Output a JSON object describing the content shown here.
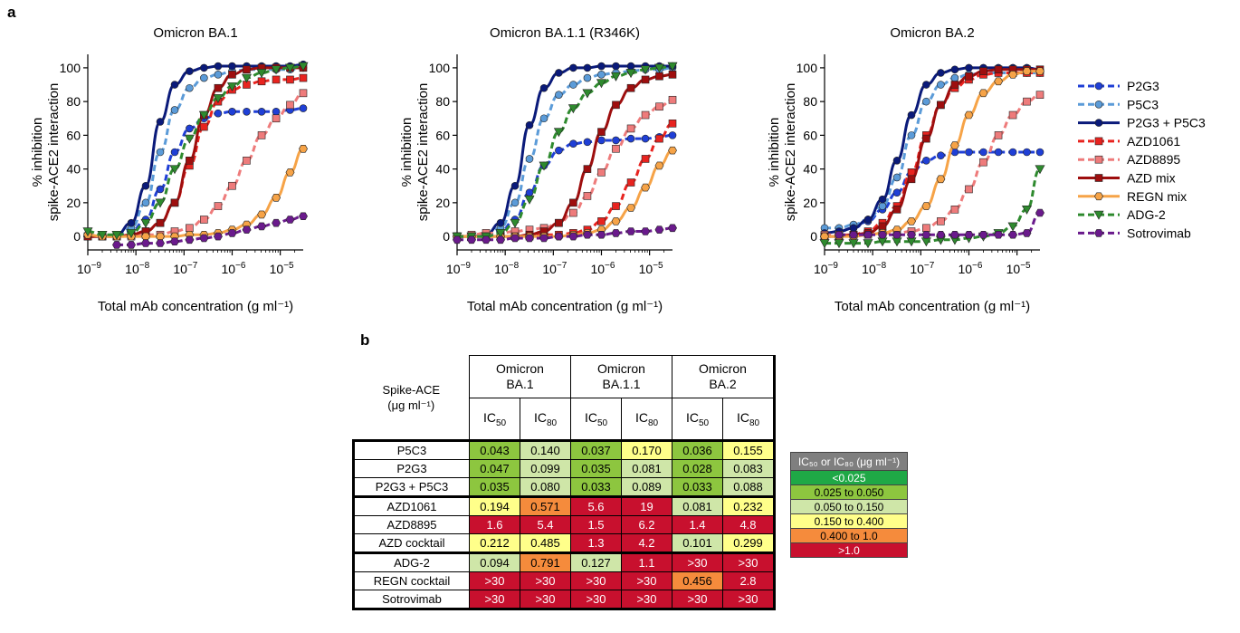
{
  "panel_a_label": "a",
  "panel_b_label": "b",
  "colors": {
    "P2G3": "#1f3fd6",
    "P5C3": "#5b9bd8",
    "P2G3 + P5C3": "#0a1a7a",
    "AZD1061": "#e8231f",
    "AZD8895": "#ee7b7b",
    "AZD mix": "#9e0e0e",
    "REGN mix": "#f6a347",
    "ADG-2": "#2e8a2e",
    "Sotrovimab": "#6a1a8c"
  },
  "chart_data": [
    {
      "type": "line",
      "title": "Omicron BA.1",
      "xlabel": "Total mAb concentration (g ml⁻¹)",
      "ylabel": "% inhibition spike-ACE2 interaction",
      "xscale": "log",
      "xlim": [
        1e-09,
        3e-05
      ],
      "ylim": [
        -8,
        108
      ],
      "xticks": [
        1e-09,
        1e-08,
        1e-07,
        1e-06,
        1e-05
      ],
      "yticks": [
        0,
        20,
        40,
        60,
        80,
        100
      ],
      "x": [
        1e-09,
        2e-09,
        4e-09,
        8e-09,
        1.6e-08,
        3.2e-08,
        6.4e-08,
        1.3e-07,
        2.6e-07,
        5.1e-07,
        1e-06,
        2e-06,
        4.1e-06,
        8.2e-06,
        1.6e-05,
        3e-05
      ],
      "series": [
        {
          "name": "P2G3",
          "values": [
            1,
            0,
            1,
            3,
            10,
            28,
            50,
            64,
            70,
            73,
            74,
            74,
            74,
            74,
            75,
            76
          ]
        },
        {
          "name": "P5C3",
          "values": [
            0,
            0,
            1,
            5,
            20,
            50,
            75,
            88,
            94,
            96,
            98,
            99,
            99,
            99,
            99,
            100
          ]
        },
        {
          "name": "P2G3 + P5C3",
          "values": [
            0,
            0,
            1,
            8,
            30,
            68,
            90,
            98,
            100,
            101,
            101,
            101,
            101,
            101,
            101,
            102
          ]
        },
        {
          "name": "AZD1061",
          "values": [
            0,
            0,
            0,
            1,
            3,
            8,
            20,
            42,
            65,
            80,
            87,
            90,
            92,
            93,
            93,
            94
          ]
        },
        {
          "name": "AZD8895",
          "values": [
            0,
            0,
            0,
            0,
            1,
            1,
            3,
            5,
            10,
            18,
            30,
            45,
            60,
            70,
            78,
            85
          ]
        },
        {
          "name": "AZD mix",
          "values": [
            0,
            0,
            0,
            1,
            3,
            8,
            20,
            45,
            72,
            88,
            96,
            99,
            100,
            100,
            100,
            100
          ]
        },
        {
          "name": "REGN mix",
          "values": [
            1,
            0,
            0,
            0,
            0,
            0,
            0,
            1,
            1,
            2,
            4,
            7,
            13,
            23,
            38,
            52
          ]
        },
        {
          "name": "ADG-2",
          "values": [
            3,
            1,
            1,
            2,
            8,
            20,
            40,
            58,
            72,
            82,
            89,
            94,
            97,
            99,
            100,
            101
          ]
        },
        {
          "name": "Sotrovimab",
          "values": [
            null,
            null,
            -5,
            -5,
            -4,
            -4,
            -3,
            -2,
            -1,
            0,
            2,
            4,
            6,
            8,
            10,
            12
          ]
        }
      ]
    },
    {
      "type": "line",
      "title": "Omicron BA.1.1 (R346K)",
      "xlabel": "Total mAb concentration (g ml⁻¹)",
      "ylabel": "% inhibition spike-ACE2 interaction",
      "xscale": "log",
      "xlim": [
        1e-09,
        3e-05
      ],
      "ylim": [
        -8,
        108
      ],
      "xticks": [
        1e-09,
        1e-08,
        1e-07,
        1e-06,
        1e-05
      ],
      "yticks": [
        0,
        20,
        40,
        60,
        80,
        100
      ],
      "x": [
        1e-09,
        2e-09,
        4e-09,
        8e-09,
        1.6e-08,
        3.2e-08,
        6.4e-08,
        1.3e-07,
        2.6e-07,
        5.1e-07,
        1e-06,
        2e-06,
        4.1e-06,
        8.2e-06,
        1.6e-05,
        3e-05
      ],
      "series": [
        {
          "name": "P2G3",
          "values": [
            0,
            0,
            1,
            3,
            10,
            26,
            42,
            51,
            55,
            56,
            57,
            57,
            58,
            58,
            59,
            60
          ]
        },
        {
          "name": "P5C3",
          "values": [
            0,
            0,
            1,
            5,
            20,
            46,
            70,
            84,
            90,
            94,
            96,
            97,
            98,
            99,
            99,
            100
          ]
        },
        {
          "name": "P2G3 + P5C3",
          "values": [
            0,
            0,
            1,
            8,
            30,
            66,
            88,
            97,
            100,
            100,
            101,
            101,
            101,
            101,
            101,
            101
          ]
        },
        {
          "name": "AZD1061",
          "values": [
            0,
            0,
            0,
            0,
            0,
            0,
            1,
            1,
            2,
            4,
            9,
            18,
            32,
            46,
            58,
            67
          ]
        },
        {
          "name": "AZD8895",
          "values": [
            0,
            1,
            2,
            2,
            3,
            4,
            5,
            8,
            14,
            24,
            38,
            52,
            64,
            72,
            77,
            81
          ]
        },
        {
          "name": "AZD mix",
          "values": [
            0,
            0,
            0,
            0,
            0,
            1,
            3,
            8,
            20,
            40,
            62,
            78,
            88,
            93,
            95,
            96
          ]
        },
        {
          "name": "REGN mix",
          "values": [
            0,
            0,
            0,
            0,
            0,
            0,
            0,
            0,
            1,
            2,
            4,
            9,
            17,
            29,
            42,
            51
          ]
        },
        {
          "name": "ADG-2",
          "values": [
            0,
            0,
            0,
            2,
            8,
            22,
            42,
            62,
            76,
            85,
            91,
            95,
            97,
            99,
            100,
            101
          ]
        },
        {
          "name": "Sotrovimab",
          "values": [
            -2,
            -2,
            -2,
            -2,
            -1,
            -1,
            -1,
            0,
            0,
            1,
            1,
            2,
            3,
            3,
            4,
            5
          ]
        }
      ]
    },
    {
      "type": "line",
      "title": "Omicron BA.2",
      "xlabel": "Total mAb concentration (g ml⁻¹)",
      "ylabel": "% inhibition spike-ACE2 interaction",
      "xscale": "log",
      "xlim": [
        1e-09,
        3e-05
      ],
      "ylim": [
        -8,
        108
      ],
      "xticks": [
        1e-09,
        1e-08,
        1e-07,
        1e-06,
        1e-05
      ],
      "yticks": [
        0,
        20,
        40,
        60,
        80,
        100
      ],
      "x": [
        1e-09,
        2e-09,
        4e-09,
        8e-09,
        1.6e-08,
        3.2e-08,
        6.4e-08,
        1.3e-07,
        2.6e-07,
        5.1e-07,
        1e-06,
        2e-06,
        4.1e-06,
        8.2e-06,
        1.6e-05,
        3e-05
      ],
      "series": [
        {
          "name": "P2G3",
          "values": [
            2,
            3,
            5,
            9,
            16,
            26,
            38,
            45,
            48,
            50,
            50,
            50,
            50,
            50,
            50,
            50
          ]
        },
        {
          "name": "P5C3",
          "values": [
            5,
            5,
            7,
            10,
            18,
            35,
            60,
            80,
            90,
            94,
            96,
            97,
            97,
            97,
            97,
            97
          ]
        },
        {
          "name": "P2G3 + P5C3",
          "values": [
            2,
            3,
            5,
            10,
            22,
            45,
            72,
            90,
            97,
            99,
            100,
            100,
            100,
            100,
            100,
            99
          ]
        },
        {
          "name": "AZD1061",
          "values": [
            0,
            0,
            1,
            3,
            8,
            18,
            38,
            60,
            78,
            88,
            93,
            96,
            97,
            97,
            97,
            97
          ]
        },
        {
          "name": "AZD8895",
          "values": [
            1,
            1,
            1,
            1,
            2,
            2,
            3,
            5,
            9,
            16,
            28,
            44,
            60,
            72,
            80,
            84
          ]
        },
        {
          "name": "AZD mix",
          "values": [
            0,
            0,
            1,
            2,
            6,
            16,
            34,
            58,
            78,
            90,
            95,
            98,
            99,
            99,
            99,
            99
          ]
        },
        {
          "name": "REGN mix",
          "values": [
            0,
            0,
            0,
            1,
            2,
            4,
            9,
            18,
            34,
            54,
            72,
            85,
            92,
            96,
            98,
            98
          ]
        },
        {
          "name": "ADG-2",
          "values": [
            -4,
            -4,
            -4,
            -4,
            -3,
            -3,
            -3,
            -3,
            -2,
            -2,
            -1,
            0,
            2,
            6,
            16,
            40
          ]
        },
        {
          "name": "Sotrovimab",
          "values": [
            null,
            1,
            1,
            1,
            1,
            1,
            1,
            1,
            1,
            1,
            1,
            1,
            1,
            1,
            2,
            14
          ]
        }
      ]
    },
    {
      "type": "table",
      "corner_label_line1": "Spike-ACE",
      "corner_label_line2": "(μg ml⁻¹)",
      "column_groups": [
        {
          "line1": "Omicron",
          "line2": "BA.1"
        },
        {
          "line1": "Omicron",
          "line2": "BA.1.1"
        },
        {
          "line1": "Omicron",
          "line2": "BA.2"
        }
      ],
      "sub_columns": [
        {
          "base": "IC",
          "sub": "50"
        },
        {
          "base": "IC",
          "sub": "80"
        }
      ],
      "rows": [
        {
          "label": "P5C3",
          "values": [
            "0.043",
            "0.140",
            "0.037",
            "0.170",
            "0.036",
            "0.155"
          ],
          "colors": [
            "#8dc63f",
            "#cfe6a8",
            "#8dc63f",
            "#ffff8a",
            "#8dc63f",
            "#ffff8a"
          ]
        },
        {
          "label": "P2G3",
          "values": [
            "0.047",
            "0.099",
            "0.035",
            "0.081",
            "0.028",
            "0.083"
          ],
          "colors": [
            "#8dc63f",
            "#cfe6a8",
            "#8dc63f",
            "#cfe6a8",
            "#8dc63f",
            "#cfe6a8"
          ]
        },
        {
          "label": "P2G3 + P5C3",
          "values": [
            "0.035",
            "0.080",
            "0.033",
            "0.089",
            "0.033",
            "0.088"
          ],
          "colors": [
            "#8dc63f",
            "#cfe6a8",
            "#8dc63f",
            "#cfe6a8",
            "#8dc63f",
            "#cfe6a8"
          ]
        },
        {
          "label": "AZD1061",
          "values": [
            "0.194",
            "0.571",
            "5.6",
            "19",
            "0.081",
            "0.232"
          ],
          "colors": [
            "#ffff8a",
            "#f58b3c",
            "#c8102e",
            "#c8102e",
            "#cfe6a8",
            "#ffff8a"
          ]
        },
        {
          "label": "AZD8895",
          "values": [
            "1.6",
            "5.4",
            "1.5",
            "6.2",
            "1.4",
            "4.8"
          ],
          "colors": [
            "#c8102e",
            "#c8102e",
            "#c8102e",
            "#c8102e",
            "#c8102e",
            "#c8102e"
          ]
        },
        {
          "label": "AZD cocktail",
          "values": [
            "0.212",
            "0.485",
            "1.3",
            "4.2",
            "0.101",
            "0.299"
          ],
          "colors": [
            "#ffff8a",
            "#ffff8a",
            "#c8102e",
            "#c8102e",
            "#cfe6a8",
            "#ffff8a"
          ]
        },
        {
          "label": "ADG-2",
          "values": [
            "0.094",
            "0.791",
            "0.127",
            "1.1",
            ">30",
            ">30"
          ],
          "colors": [
            "#cfe6a8",
            "#f58b3c",
            "#cfe6a8",
            "#c8102e",
            "#c8102e",
            "#c8102e"
          ]
        },
        {
          "label": "REGN cocktail",
          "values": [
            ">30",
            ">30",
            ">30",
            ">30",
            "0.456",
            "2.8"
          ],
          "colors": [
            "#c8102e",
            "#c8102e",
            "#c8102e",
            "#c8102e",
            "#f58b3c",
            "#c8102e"
          ]
        },
        {
          "label": "Sotrovimab",
          "values": [
            ">30",
            ">30",
            ">30",
            ">30",
            ">30",
            ">30"
          ],
          "colors": [
            "#c8102e",
            "#c8102e",
            "#c8102e",
            "#c8102e",
            "#c8102e",
            "#c8102e"
          ]
        }
      ]
    }
  ],
  "color_key": {
    "title": "IC₅₀ or IC₈₀ (μg ml⁻¹)",
    "items": [
      {
        "label": "<0.025",
        "color": "#1fa846"
      },
      {
        "label": "0.025 to 0.050",
        "color": "#8dc63f"
      },
      {
        "label": "0.050 to 0.150",
        "color": "#cfe6a8"
      },
      {
        "label": "0.150 to 0.400",
        "color": "#ffff8a"
      },
      {
        "label": "0.400 to 1.0",
        "color": "#f58b3c"
      },
      {
        "label": ">1.0",
        "color": "#c8102e"
      }
    ]
  },
  "legend": [
    {
      "name": "P2G3",
      "dashed": true,
      "marker": "circle"
    },
    {
      "name": "P5C3",
      "dashed": true,
      "marker": "circle"
    },
    {
      "name": "P2G3 + P5C3",
      "dashed": false,
      "marker": "circle"
    },
    {
      "name": "AZD1061",
      "dashed": true,
      "marker": "square"
    },
    {
      "name": "AZD8895",
      "dashed": true,
      "marker": "square"
    },
    {
      "name": "AZD mix",
      "dashed": false,
      "marker": "square"
    },
    {
      "name": "REGN mix",
      "dashed": false,
      "marker": "hexagon"
    },
    {
      "name": "ADG-2",
      "dashed": true,
      "marker": "triangle-down"
    },
    {
      "name": "Sotrovimab",
      "dashed": true,
      "marker": "hexagon"
    }
  ]
}
